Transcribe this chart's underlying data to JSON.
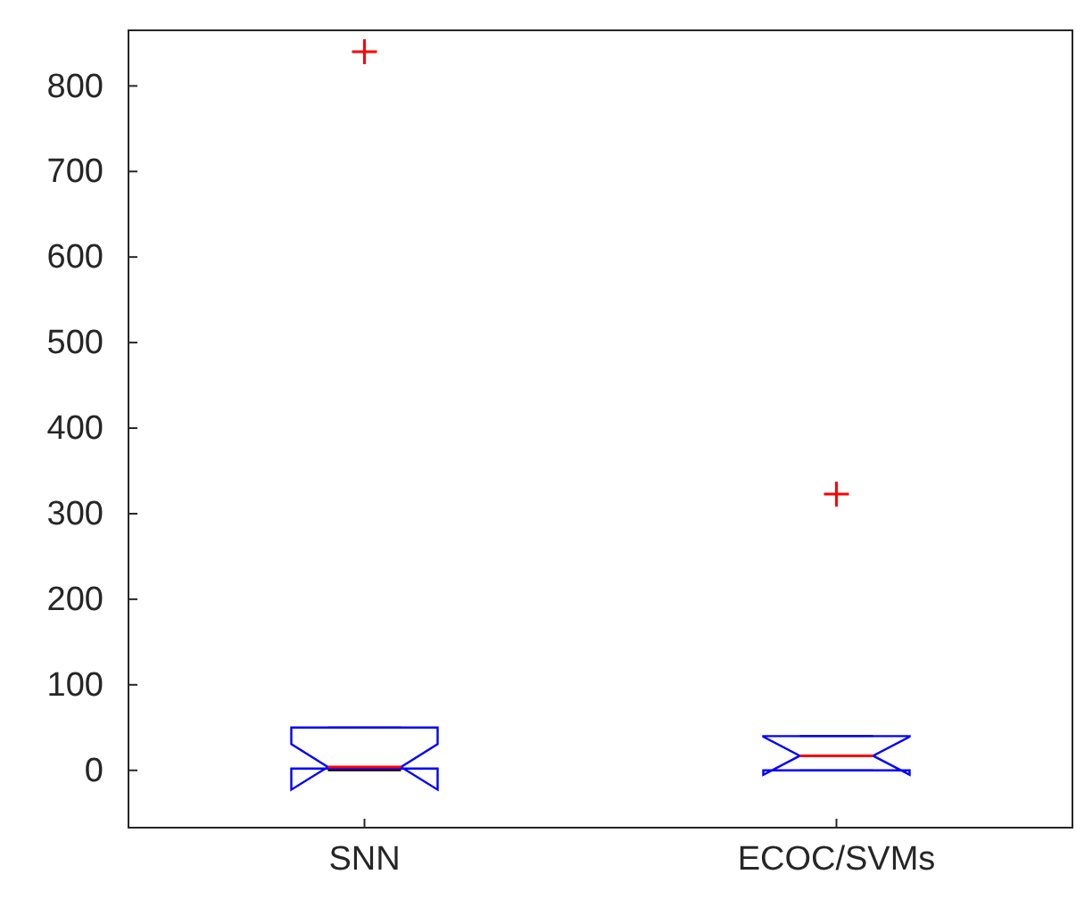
{
  "chart_data": {
    "type": "box",
    "categories": [
      "SNN",
      "ECOC/SVMs"
    ],
    "boxes": [
      {
        "low": 0,
        "q1": 2,
        "median": 4,
        "q3": 50,
        "high": 50,
        "outliers": [
          840
        ]
      },
      {
        "low": 0,
        "q1": 0,
        "median": 17,
        "q3": 40,
        "high": 40,
        "outliers": [
          323
        ]
      }
    ],
    "ylim": [
      -67,
      865
    ],
    "yticks": [
      0,
      100,
      200,
      300,
      400,
      500,
      600,
      700,
      800
    ],
    "grid": false
  }
}
